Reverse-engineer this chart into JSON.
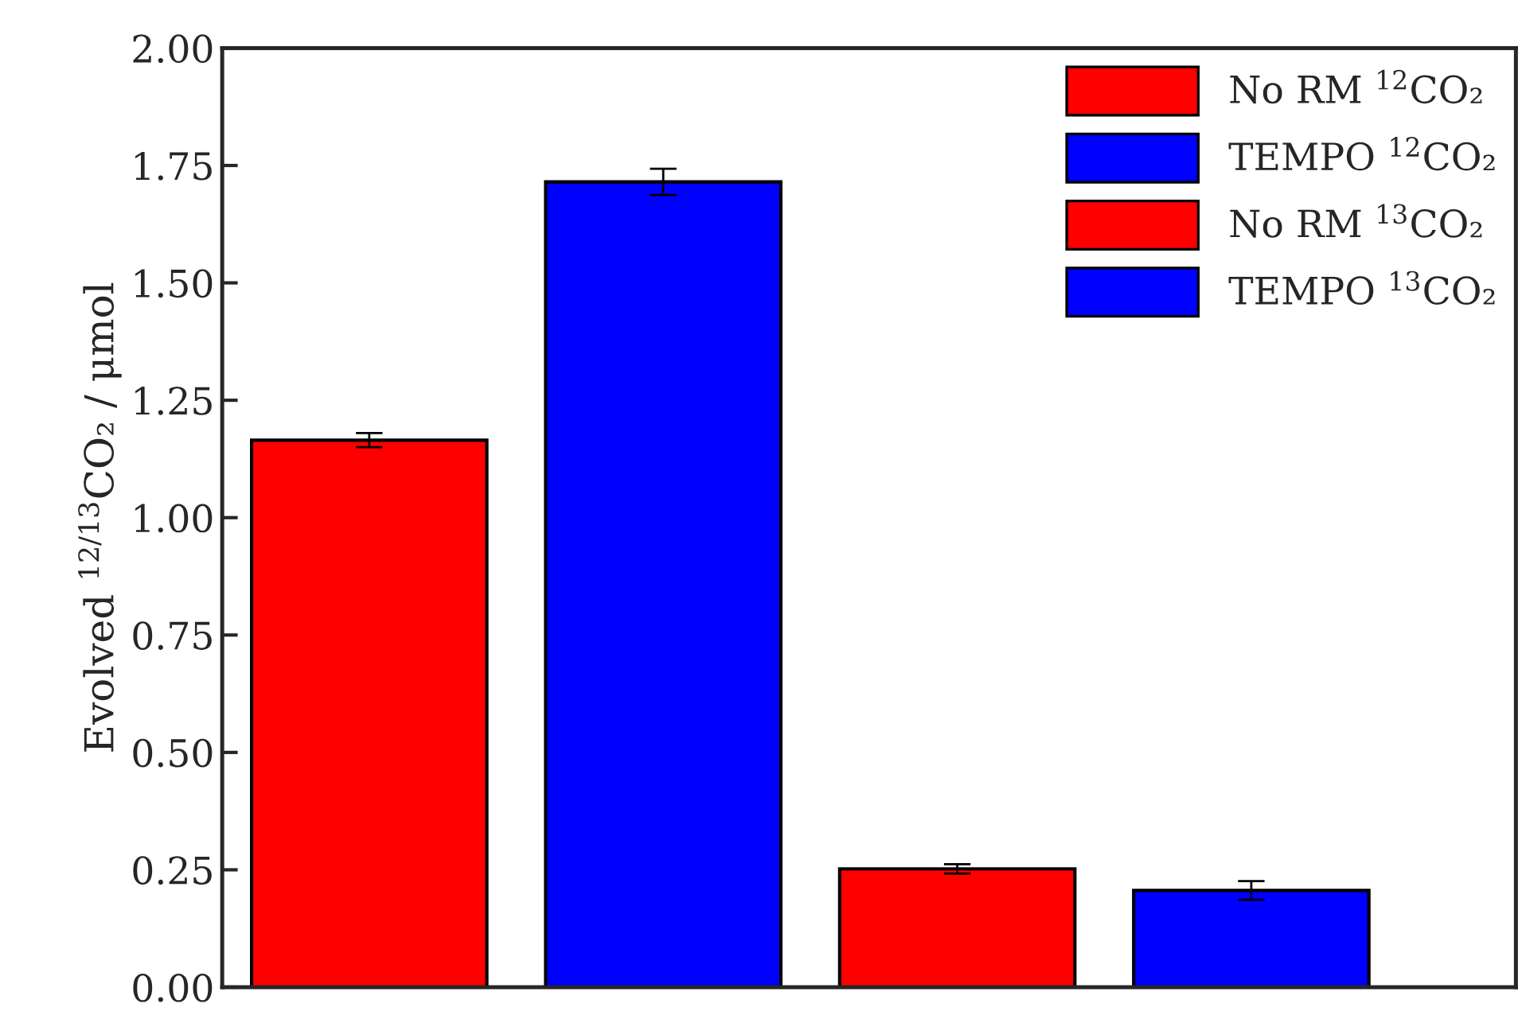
{
  "chart_data": {
    "type": "bar",
    "ylabel": "Evolved $^{12/13}$CO₂ / μmol",
    "categories": [
      null,
      null,
      null,
      null
    ],
    "series": [
      {
        "name": "No RM $^{12}$CO₂",
        "color": "#ff0000",
        "values": [
          1.165,
          null,
          null,
          null
        ],
        "errors": [
          0.015,
          null,
          null,
          null
        ]
      },
      {
        "name": "TEMPO $^{12}$CO₂",
        "color": "#0000ff",
        "values": [
          null,
          1.715,
          null,
          null
        ],
        "errors": [
          null,
          0.028,
          null,
          null
        ]
      },
      {
        "name": "No RM $^{13}$CO₂",
        "color": "#ff0000",
        "values": [
          null,
          null,
          0.252,
          null
        ],
        "errors": [
          null,
          null,
          0.01,
          null
        ]
      },
      {
        "name": "TEMPO $^{13}$CO₂",
        "color": "#0000ff",
        "values": [
          null,
          null,
          null,
          0.206
        ],
        "errors": [
          null,
          null,
          null,
          0.02
        ]
      }
    ],
    "ylim": [
      0,
      2
    ],
    "yticks": [
      {
        "value": 0,
        "label": "0.00"
      },
      {
        "value": 0.25,
        "label": "0.25"
      },
      {
        "value": 0.5,
        "label": "0.50"
      },
      {
        "value": 0.75,
        "label": "0.75"
      },
      {
        "value": 1,
        "label": "1.00"
      },
      {
        "value": 1.25,
        "label": "1.25"
      },
      {
        "value": 1.5,
        "label": "1.50"
      },
      {
        "value": 1.75,
        "label": "1.75"
      },
      {
        "value": 2,
        "label": "2.00"
      }
    ],
    "stacked": true,
    "legend": "top right",
    "grid": false
  }
}
